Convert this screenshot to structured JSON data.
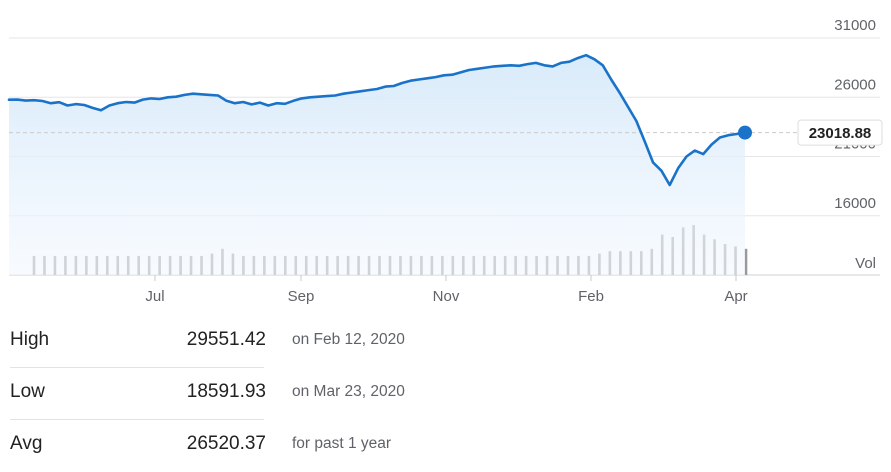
{
  "chart_data": {
    "type": "line",
    "x_ticks": [
      "Jul",
      "Sep",
      "Nov",
      "Feb",
      "Apr"
    ],
    "y_ticks": [
      31000,
      26000,
      21000,
      16000
    ],
    "y_axis_range": [
      11000,
      31000
    ],
    "volume_label": "Vol",
    "last_value": 23018.88,
    "last_value_label": "23018.88",
    "grid": true,
    "series": [
      {
        "values": [
          25790,
          25800,
          25720,
          25750,
          25680,
          25500,
          25580,
          25300,
          25420,
          25350,
          25100,
          24900,
          25300,
          25500,
          25600,
          25550,
          25800,
          25900,
          25850,
          26000,
          26050,
          26200,
          26300,
          26250,
          26200,
          26150,
          25700,
          25500,
          25600,
          25400,
          25550,
          25300,
          25500,
          25450,
          25700,
          25900,
          26000,
          26050,
          26100,
          26150,
          26300,
          26400,
          26500,
          26600,
          26700,
          26900,
          26950,
          27200,
          27400,
          27500,
          27600,
          27700,
          27850,
          27900,
          28100,
          28300,
          28400,
          28500,
          28600,
          28650,
          28700,
          28650,
          28800,
          28900,
          28700,
          28600,
          28900,
          29000,
          29300,
          29551,
          29200,
          28700,
          27500,
          26400,
          25200,
          24000,
          22300,
          20500,
          19800,
          18592,
          20000,
          21000,
          21500,
          21200,
          22000,
          22600,
          22800,
          22900,
          23019
        ]
      }
    ],
    "volume": [
      8,
      8,
      8,
      8,
      8,
      8,
      8,
      8,
      8,
      8,
      8,
      8,
      8,
      8,
      8,
      8,
      8,
      9,
      11,
      9,
      8,
      8,
      8,
      8,
      8,
      8,
      8,
      8,
      8,
      8,
      8,
      8,
      8,
      8,
      8,
      8,
      8,
      8,
      8,
      8,
      8,
      8,
      8,
      8,
      8,
      8,
      8,
      8,
      8,
      8,
      8,
      8,
      8,
      8,
      9,
      10,
      10,
      10,
      10,
      11,
      17,
      16,
      20,
      21,
      17,
      15,
      13,
      12,
      11
    ]
  },
  "stats": {
    "high": {
      "label": "High",
      "value": "29551.42",
      "note": "on Feb 12, 2020"
    },
    "low": {
      "label": "Low",
      "value": "18591.93",
      "note": "on Mar 23, 2020"
    },
    "avg": {
      "label": "Avg",
      "value": "26520.37",
      "note": "for past 1 year"
    }
  },
  "colors": {
    "line": "#1a73c8",
    "fill_top": "#d4e8f9",
    "fill_bottom": "#f3f8fe",
    "volume": "#9a9a9a",
    "grid": "#e6e6e6",
    "axis_text": "#5f6368",
    "badge_text": "#222222",
    "badge_border": "#dddddd"
  }
}
